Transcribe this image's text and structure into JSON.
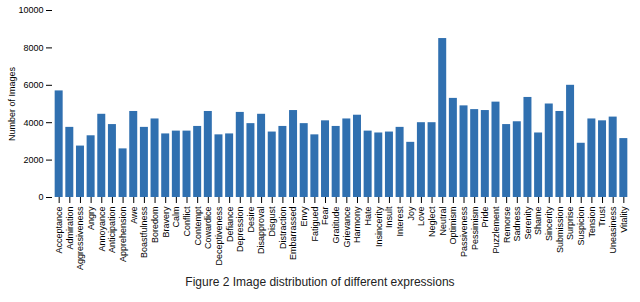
{
  "chart_data": {
    "type": "bar",
    "caption": "Figure 2  Image distribution of different expressions",
    "ylabel": "Number of Images",
    "categories": [
      "Acceptance",
      "Admiration",
      "Aggressiveness",
      "Angry",
      "Annoyance",
      "Anticipation",
      "Apprehension",
      "Awe",
      "Boastfulness",
      "Boredom",
      "Bravery",
      "Calm",
      "Conflict",
      "Contempt",
      "Cowardice",
      "Deceptiveness",
      "Defiance",
      "Depression",
      "Desire",
      "Disapproval",
      "Disgust",
      "Distraction",
      "Embarrassed",
      "Envy",
      "Fatigued",
      "Fear",
      "Gratitude",
      "Grievance",
      "Harmony",
      "Hate",
      "Insincerity",
      "Insult",
      "Interest",
      "Joy",
      "Love",
      "Neglect",
      "Neutral",
      "Optimism",
      "Passiveness",
      "Pessimism",
      "Pride",
      "Puzzlement",
      "Remorse",
      "Sadness",
      "Serenity",
      "Shame",
      "Sincerity",
      "Submission",
      "Surprise",
      "Suspicion",
      "Tension",
      "Trust",
      "Uneasiness",
      "Vitality"
    ],
    "values": [
      5700,
      3750,
      2750,
      3300,
      4450,
      3900,
      2600,
      4600,
      3750,
      4200,
      3400,
      3550,
      3550,
      3800,
      4600,
      3350,
      3400,
      4550,
      3950,
      4450,
      3500,
      3800,
      4650,
      3950,
      3350,
      4100,
      3800,
      4200,
      4400,
      3550,
      3450,
      3500,
      3750,
      2950,
      4000,
      4000,
      8500,
      5300,
      4900,
      4700,
      4650,
      5100,
      3900,
      4050,
      5350,
      3450,
      5000,
      4600,
      6000,
      2900,
      4200,
      4100,
      4300,
      3150
    ],
    "color": "#3070b0",
    "ylim": [
      0,
      10000
    ],
    "yticks": [
      0,
      2000,
      4000,
      6000,
      8000,
      10000
    ],
    "grid": false
  }
}
